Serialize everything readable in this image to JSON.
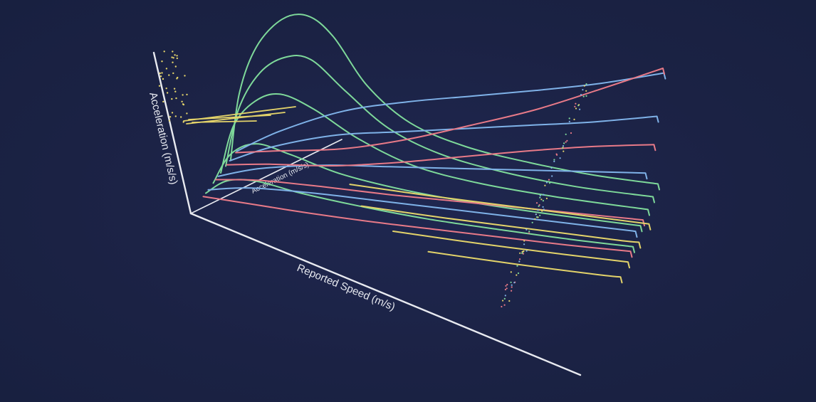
{
  "chart_data": {
    "type": "line",
    "view": "3d-perspective",
    "title": "",
    "axes": {
      "x_label": "Reported Speed (m/s)",
      "y_label": "Acceleration (m/s/s)",
      "z_label": "Acceleration (m/s/s)"
    },
    "grid": false,
    "legend": "none",
    "colors": {
      "background": "#1b2244",
      "axis": "#e8eaf0",
      "green": "#7ed99a",
      "blue": "#7fb2e8",
      "red": "#e87a88",
      "yellow": "#e3d36a"
    },
    "series": [
      {
        "color": "green",
        "points": [
          [
            0,
            0.0
          ],
          [
            0.02,
            0.55
          ],
          [
            0.06,
            0.95
          ],
          [
            0.12,
            1.2
          ],
          [
            0.18,
            1.25
          ],
          [
            0.24,
            1.1
          ],
          [
            0.32,
            0.72
          ],
          [
            0.42,
            0.45
          ],
          [
            0.55,
            0.3
          ],
          [
            0.7,
            0.22
          ],
          [
            0.85,
            0.17
          ],
          [
            1.0,
            0.15
          ]
        ],
        "depth": 0.8
      },
      {
        "color": "green",
        "points": [
          [
            0,
            0.0
          ],
          [
            0.03,
            0.48
          ],
          [
            0.08,
            0.8
          ],
          [
            0.14,
            0.95
          ],
          [
            0.2,
            0.95
          ],
          [
            0.28,
            0.72
          ],
          [
            0.38,
            0.45
          ],
          [
            0.5,
            0.28
          ],
          [
            0.65,
            0.18
          ],
          [
            0.82,
            0.12
          ],
          [
            1.0,
            0.1
          ]
        ],
        "depth": 0.7
      },
      {
        "color": "green",
        "points": [
          [
            0,
            0.0
          ],
          [
            0.03,
            0.4
          ],
          [
            0.08,
            0.62
          ],
          [
            0.14,
            0.7
          ],
          [
            0.22,
            0.6
          ],
          [
            0.32,
            0.4
          ],
          [
            0.45,
            0.22
          ],
          [
            0.6,
            0.13
          ],
          [
            0.78,
            0.08
          ],
          [
            1.0,
            0.05
          ]
        ],
        "depth": 0.6
      },
      {
        "color": "green",
        "points": [
          [
            0,
            0.0
          ],
          [
            0.04,
            0.25
          ],
          [
            0.1,
            0.36
          ],
          [
            0.18,
            0.3
          ],
          [
            0.3,
            0.18
          ],
          [
            0.45,
            0.1
          ],
          [
            0.62,
            0.05
          ],
          [
            0.8,
            0.02
          ],
          [
            1.0,
            0.0
          ]
        ],
        "depth": 0.45
      },
      {
        "color": "green",
        "points": [
          [
            0,
            0.0
          ],
          [
            0.05,
            0.12
          ],
          [
            0.12,
            0.14
          ],
          [
            0.22,
            0.08
          ],
          [
            0.36,
            0.02
          ],
          [
            0.52,
            -0.03
          ],
          [
            0.7,
            -0.06
          ],
          [
            0.85,
            -0.08
          ],
          [
            1.0,
            -0.09
          ]
        ],
        "depth": 0.3
      },
      {
        "color": "blue",
        "points": [
          [
            0,
            0.0
          ],
          [
            0.1,
            0.2
          ],
          [
            0.25,
            0.42
          ],
          [
            0.4,
            0.55
          ],
          [
            0.55,
            0.65
          ],
          [
            0.7,
            0.75
          ],
          [
            0.85,
            0.86
          ],
          [
            1.0,
            1.0
          ]
        ],
        "depth": 0.92
      },
      {
        "color": "blue",
        "points": [
          [
            0,
            0.0
          ],
          [
            0.1,
            0.15
          ],
          [
            0.25,
            0.3
          ],
          [
            0.4,
            0.38
          ],
          [
            0.55,
            0.46
          ],
          [
            0.7,
            0.54
          ],
          [
            0.85,
            0.62
          ],
          [
            1.0,
            0.72
          ]
        ],
        "depth": 0.78
      },
      {
        "color": "blue",
        "points": [
          [
            0,
            0.0
          ],
          [
            0.1,
            0.1
          ],
          [
            0.25,
            0.18
          ],
          [
            0.4,
            0.22
          ],
          [
            0.55,
            0.26
          ],
          [
            0.7,
            0.3
          ],
          [
            0.85,
            0.34
          ],
          [
            1.0,
            0.38
          ]
        ],
        "depth": 0.55
      },
      {
        "color": "blue",
        "points": [
          [
            0,
            0.0
          ],
          [
            0.1,
            0.05
          ],
          [
            0.25,
            0.06
          ],
          [
            0.4,
            0.05
          ],
          [
            0.55,
            0.04
          ],
          [
            0.7,
            0.03
          ],
          [
            0.85,
            0.02
          ],
          [
            1.0,
            0.01
          ]
        ],
        "depth": 0.35
      },
      {
        "color": "red",
        "points": [
          [
            0,
            0.0
          ],
          [
            0.1,
            0.05
          ],
          [
            0.25,
            0.12
          ],
          [
            0.4,
            0.25
          ],
          [
            0.55,
            0.42
          ],
          [
            0.7,
            0.6
          ],
          [
            0.85,
            0.82
          ],
          [
            1.0,
            1.05
          ]
        ],
        "depth": 0.9
      },
      {
        "color": "red",
        "points": [
          [
            0,
            0.0
          ],
          [
            0.1,
            0.04
          ],
          [
            0.25,
            0.08
          ],
          [
            0.4,
            0.16
          ],
          [
            0.55,
            0.26
          ],
          [
            0.7,
            0.36
          ],
          [
            0.85,
            0.45
          ],
          [
            1.0,
            0.52
          ]
        ],
        "depth": 0.72
      },
      {
        "color": "red",
        "points": [
          [
            0,
            0.0
          ],
          [
            0.1,
            0.03
          ],
          [
            0.25,
            0.03
          ],
          [
            0.4,
            0.02
          ],
          [
            0.55,
            0.02
          ],
          [
            0.7,
            0.02
          ],
          [
            0.85,
            0.02
          ],
          [
            1.0,
            0.02
          ]
        ],
        "depth": 0.5
      },
      {
        "color": "red",
        "points": [
          [
            0,
            0.0
          ],
          [
            0.1,
            -0.02
          ],
          [
            0.25,
            -0.05
          ],
          [
            0.4,
            -0.07
          ],
          [
            0.55,
            -0.08
          ],
          [
            0.7,
            -0.09
          ],
          [
            0.85,
            -0.1
          ],
          [
            1.0,
            -0.1
          ]
        ],
        "depth": 0.25
      },
      {
        "color": "yellow",
        "points": [
          [
            0.3,
            0.0
          ],
          [
            0.5,
            -0.03
          ],
          [
            0.7,
            -0.05
          ],
          [
            0.9,
            -0.07
          ],
          [
            1.0,
            -0.08
          ]
        ],
        "depth": 0.62
      },
      {
        "color": "yellow",
        "points": [
          [
            0.35,
            -0.05
          ],
          [
            0.55,
            -0.08
          ],
          [
            0.75,
            -0.1
          ],
          [
            0.95,
            -0.12
          ],
          [
            1.0,
            -0.12
          ]
        ],
        "depth": 0.42
      },
      {
        "color": "yellow",
        "points": [
          [
            0.45,
            -0.1
          ],
          [
            0.65,
            -0.13
          ],
          [
            0.85,
            -0.15
          ],
          [
            1.0,
            -0.16
          ]
        ],
        "depth": 0.2
      },
      {
        "color": "yellow",
        "points": [
          [
            0.55,
            -0.15
          ],
          [
            0.75,
            -0.18
          ],
          [
            0.95,
            -0.2
          ],
          [
            1.0,
            -0.2
          ]
        ],
        "depth": 0.05
      }
    ]
  }
}
